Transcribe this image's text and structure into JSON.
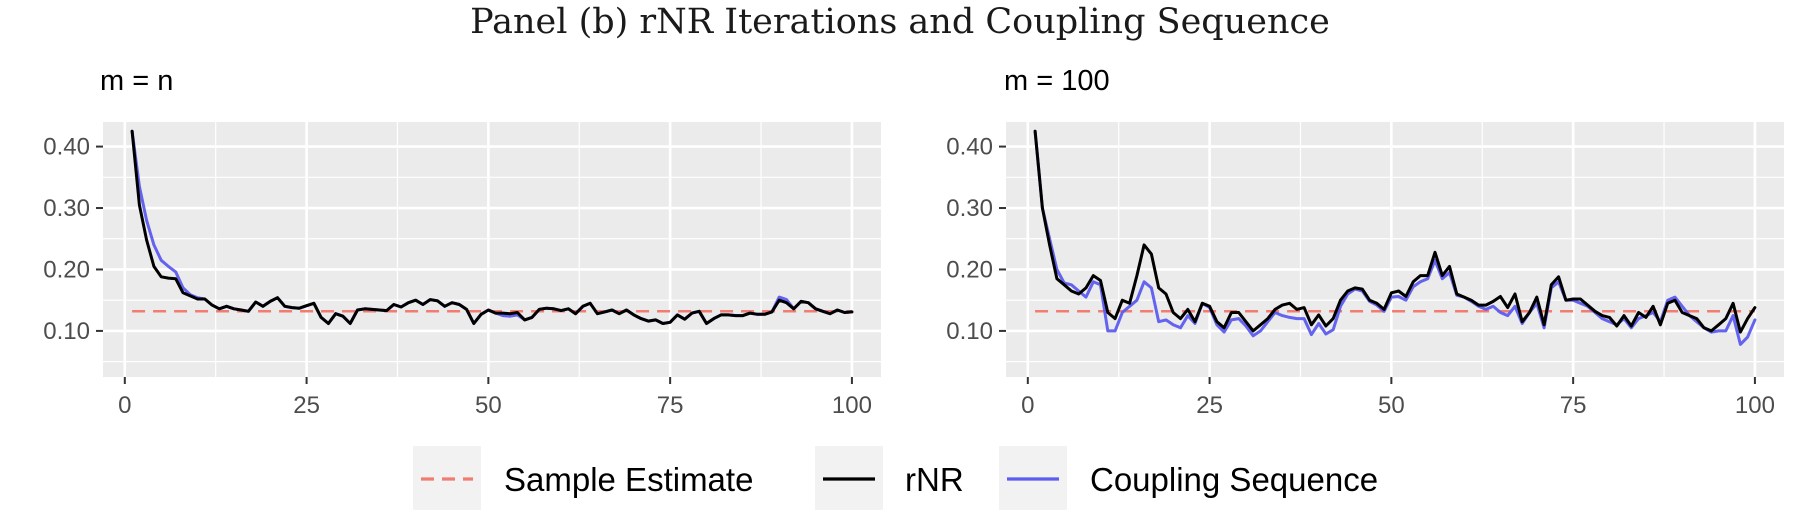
{
  "title": "Panel (b) rNR Iterations and Coupling Sequence",
  "colors": {
    "panel_bg": "#ebebeb",
    "grid": "#ffffff",
    "sample_estimate": "#f07c72",
    "rnr": "#000000",
    "coupling": "#5c5cf0"
  },
  "legend": [
    {
      "label": "Sample Estimate",
      "style": "dashed",
      "color": "#f07c72"
    },
    {
      "label": "rNR",
      "style": "solid",
      "color": "#000000"
    },
    {
      "label": "Coupling Sequence",
      "style": "solid",
      "color": "#5c5cf0"
    }
  ],
  "chart_data": [
    {
      "type": "line",
      "title": "m = n",
      "xlabel": "",
      "ylabel": "",
      "xlim": [
        -3,
        104
      ],
      "ylim": [
        0.025,
        0.44
      ],
      "xticks": [
        0,
        25,
        50,
        75,
        100
      ],
      "xtick_labels": [
        "0",
        "25",
        "50",
        "75",
        "100"
      ],
      "yticks": [
        0.1,
        0.2,
        0.3,
        0.4
      ],
      "ytick_labels": [
        "0.10",
        "0.20",
        "0.30",
        "0.40"
      ],
      "grid": true,
      "sample_estimate": 0.132,
      "x": [
        1,
        2,
        3,
        4,
        5,
        6,
        7,
        8,
        9,
        10,
        11,
        12,
        13,
        14,
        15,
        16,
        17,
        18,
        19,
        20,
        21,
        22,
        23,
        24,
        25,
        26,
        27,
        28,
        29,
        30,
        31,
        32,
        33,
        34,
        35,
        36,
        37,
        38,
        39,
        40,
        41,
        42,
        43,
        44,
        45,
        46,
        47,
        48,
        49,
        50,
        51,
        52,
        53,
        54,
        55,
        56,
        57,
        58,
        59,
        60,
        61,
        62,
        63,
        64,
        65,
        66,
        67,
        68,
        69,
        70,
        71,
        72,
        73,
        74,
        75,
        76,
        77,
        78,
        79,
        80,
        81,
        82,
        83,
        84,
        85,
        86,
        87,
        88,
        89,
        90,
        91,
        92,
        93,
        94,
        95,
        96,
        97,
        98,
        99,
        100
      ],
      "series": [
        {
          "name": "rNR",
          "values": [
            0.425,
            0.305,
            0.248,
            0.205,
            0.188,
            0.186,
            0.185,
            0.162,
            0.157,
            0.152,
            0.152,
            0.142,
            0.136,
            0.14,
            0.136,
            0.134,
            0.132,
            0.147,
            0.14,
            0.148,
            0.154,
            0.14,
            0.138,
            0.137,
            0.141,
            0.145,
            0.122,
            0.112,
            0.128,
            0.124,
            0.112,
            0.134,
            0.136,
            0.135,
            0.134,
            0.133,
            0.143,
            0.139,
            0.146,
            0.15,
            0.143,
            0.151,
            0.149,
            0.14,
            0.146,
            0.143,
            0.135,
            0.112,
            0.127,
            0.134,
            0.129,
            0.129,
            0.128,
            0.13,
            0.118,
            0.122,
            0.135,
            0.137,
            0.136,
            0.133,
            0.136,
            0.128,
            0.14,
            0.145,
            0.128,
            0.131,
            0.134,
            0.128,
            0.134,
            0.126,
            0.12,
            0.116,
            0.118,
            0.112,
            0.114,
            0.126,
            0.119,
            0.129,
            0.132,
            0.112,
            0.12,
            0.126,
            0.126,
            0.125,
            0.125,
            0.129,
            0.127,
            0.127,
            0.131,
            0.15,
            0.146,
            0.136,
            0.148,
            0.146,
            0.136,
            0.132,
            0.128,
            0.134,
            0.13,
            0.131
          ]
        },
        {
          "name": "Coupling Sequence",
          "values": [
            0.425,
            0.335,
            0.28,
            0.24,
            0.215,
            0.205,
            0.196,
            0.17,
            0.159,
            0.154,
            0.152,
            0.142,
            0.136,
            0.14,
            0.136,
            0.134,
            0.132,
            0.147,
            0.14,
            0.148,
            0.154,
            0.14,
            0.138,
            0.137,
            0.141,
            0.145,
            0.122,
            0.112,
            0.128,
            0.124,
            0.112,
            0.134,
            0.136,
            0.135,
            0.134,
            0.133,
            0.143,
            0.139,
            0.146,
            0.15,
            0.143,
            0.151,
            0.149,
            0.14,
            0.146,
            0.143,
            0.135,
            0.112,
            0.127,
            0.134,
            0.129,
            0.125,
            0.124,
            0.126,
            0.118,
            0.122,
            0.135,
            0.137,
            0.136,
            0.133,
            0.136,
            0.128,
            0.14,
            0.145,
            0.128,
            0.131,
            0.134,
            0.128,
            0.134,
            0.126,
            0.12,
            0.116,
            0.118,
            0.112,
            0.114,
            0.126,
            0.119,
            0.129,
            0.132,
            0.112,
            0.12,
            0.126,
            0.126,
            0.125,
            0.125,
            0.129,
            0.127,
            0.127,
            0.131,
            0.155,
            0.151,
            0.136,
            0.148,
            0.146,
            0.136,
            0.132,
            0.128,
            0.134,
            0.13,
            0.131
          ]
        }
      ]
    },
    {
      "type": "line",
      "title": "m = 100",
      "xlabel": "",
      "ylabel": "",
      "xlim": [
        -3,
        104
      ],
      "ylim": [
        0.025,
        0.44
      ],
      "xticks": [
        0,
        25,
        50,
        75,
        100
      ],
      "xtick_labels": [
        "0",
        "25",
        "50",
        "75",
        "100"
      ],
      "yticks": [
        0.1,
        0.2,
        0.3,
        0.4
      ],
      "ytick_labels": [
        "0.10",
        "0.20",
        "0.30",
        "0.40"
      ],
      "grid": true,
      "sample_estimate": 0.132,
      "x": [
        1,
        2,
        3,
        4,
        5,
        6,
        7,
        8,
        9,
        10,
        11,
        12,
        13,
        14,
        15,
        16,
        17,
        18,
        19,
        20,
        21,
        22,
        23,
        24,
        25,
        26,
        27,
        28,
        29,
        30,
        31,
        32,
        33,
        34,
        35,
        36,
        37,
        38,
        39,
        40,
        41,
        42,
        43,
        44,
        45,
        46,
        47,
        48,
        49,
        50,
        51,
        52,
        53,
        54,
        55,
        56,
        57,
        58,
        59,
        60,
        61,
        62,
        63,
        64,
        65,
        66,
        67,
        68,
        69,
        70,
        71,
        72,
        73,
        74,
        75,
        76,
        77,
        78,
        79,
        80,
        81,
        82,
        83,
        84,
        85,
        86,
        87,
        88,
        89,
        90,
        91,
        92,
        93,
        94,
        95,
        96,
        97,
        98,
        99,
        100
      ],
      "series": [
        {
          "name": "rNR",
          "values": [
            0.425,
            0.3,
            0.24,
            0.185,
            0.175,
            0.165,
            0.16,
            0.17,
            0.19,
            0.182,
            0.13,
            0.12,
            0.15,
            0.145,
            0.19,
            0.24,
            0.225,
            0.17,
            0.16,
            0.13,
            0.12,
            0.135,
            0.115,
            0.145,
            0.14,
            0.115,
            0.105,
            0.13,
            0.13,
            0.115,
            0.1,
            0.11,
            0.12,
            0.135,
            0.142,
            0.145,
            0.135,
            0.138,
            0.11,
            0.126,
            0.108,
            0.12,
            0.15,
            0.165,
            0.17,
            0.168,
            0.15,
            0.145,
            0.135,
            0.162,
            0.165,
            0.156,
            0.18,
            0.19,
            0.19,
            0.228,
            0.19,
            0.205,
            0.16,
            0.155,
            0.15,
            0.142,
            0.142,
            0.148,
            0.156,
            0.138,
            0.16,
            0.115,
            0.13,
            0.155,
            0.11,
            0.175,
            0.188,
            0.15,
            0.152,
            0.152,
            0.142,
            0.132,
            0.125,
            0.122,
            0.108,
            0.125,
            0.108,
            0.13,
            0.122,
            0.14,
            0.11,
            0.145,
            0.15,
            0.13,
            0.125,
            0.12,
            0.105,
            0.1,
            0.11,
            0.12,
            0.145,
            0.098,
            0.12,
            0.138
          ]
        },
        {
          "name": "Coupling Sequence",
          "values": [
            0.425,
            0.3,
            0.25,
            0.2,
            0.178,
            0.175,
            0.165,
            0.155,
            0.18,
            0.175,
            0.1,
            0.1,
            0.13,
            0.14,
            0.15,
            0.18,
            0.17,
            0.115,
            0.118,
            0.11,
            0.105,
            0.125,
            0.112,
            0.145,
            0.138,
            0.11,
            0.098,
            0.118,
            0.12,
            0.108,
            0.092,
            0.1,
            0.115,
            0.13,
            0.125,
            0.122,
            0.12,
            0.12,
            0.094,
            0.112,
            0.095,
            0.102,
            0.14,
            0.16,
            0.168,
            0.165,
            0.148,
            0.142,
            0.132,
            0.155,
            0.156,
            0.15,
            0.172,
            0.18,
            0.185,
            0.215,
            0.185,
            0.195,
            0.158,
            0.155,
            0.148,
            0.14,
            0.135,
            0.14,
            0.13,
            0.125,
            0.14,
            0.112,
            0.13,
            0.145,
            0.105,
            0.17,
            0.18,
            0.15,
            0.15,
            0.145,
            0.14,
            0.13,
            0.12,
            0.115,
            0.11,
            0.12,
            0.105,
            0.12,
            0.125,
            0.13,
            0.115,
            0.15,
            0.155,
            0.14,
            0.125,
            0.115,
            0.105,
            0.098,
            0.1,
            0.1,
            0.125,
            0.078,
            0.09,
            0.118
          ]
        }
      ]
    }
  ]
}
